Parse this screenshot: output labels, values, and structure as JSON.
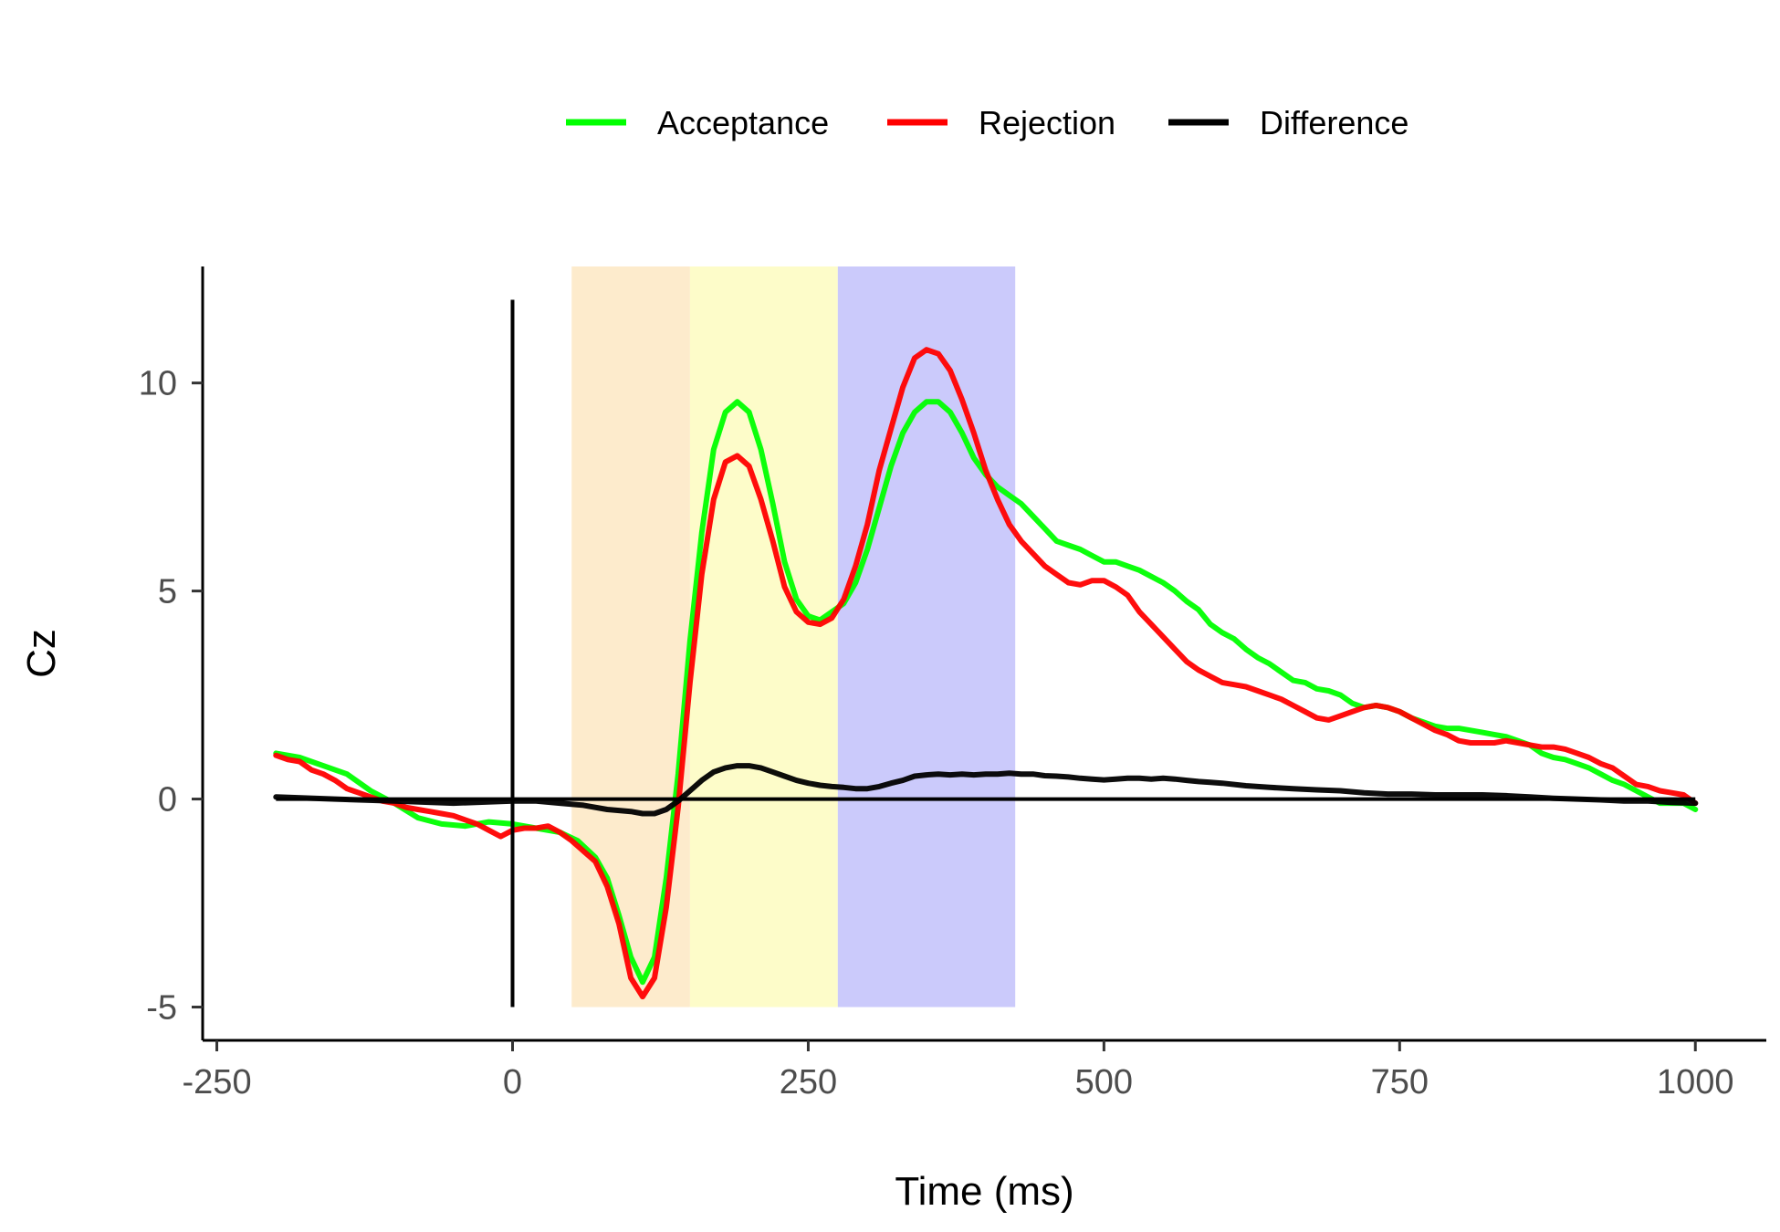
{
  "chart_data": {
    "type": "line",
    "title": "",
    "xlabel": "Time (ms)",
    "ylabel": "Cz",
    "xlim": [
      -262,
      1060
    ],
    "ylim": [
      -5.8,
      12.8
    ],
    "x_ticks": [
      -250,
      0,
      250,
      500,
      750,
      1000
    ],
    "x_tick_labels": [
      "-250",
      "0",
      "250",
      "500",
      "750",
      "1000"
    ],
    "y_ticks": [
      -5,
      0,
      5,
      10
    ],
    "y_tick_labels": [
      "-5",
      "0",
      "5",
      "10"
    ],
    "grid": false,
    "legend_position": "top",
    "reference_lines": [
      {
        "orientation": "horizontal",
        "value": 0,
        "color": "#000000"
      },
      {
        "orientation": "vertical",
        "value": 0,
        "from": -5,
        "to": 12,
        "color": "#000000"
      }
    ],
    "shaded_windows": [
      {
        "from": 50,
        "to": 150,
        "y_from": -5,
        "y_to": 12.8,
        "color": "#fdebcc"
      },
      {
        "from": 150,
        "to": 275,
        "y_from": -5,
        "y_to": 12.8,
        "color": "#fdfcc9"
      },
      {
        "from": 275,
        "to": 425,
        "y_from": -5,
        "y_to": 12.8,
        "color": "#cbcafb"
      }
    ],
    "series": [
      {
        "name": "Acceptance",
        "color": "#00ff00",
        "points": [
          [
            -200,
            1.1
          ],
          [
            -180,
            1.0
          ],
          [
            -160,
            0.8
          ],
          [
            -140,
            0.6
          ],
          [
            -120,
            0.2
          ],
          [
            -100,
            -0.1
          ],
          [
            -80,
            -0.45
          ],
          [
            -60,
            -0.6
          ],
          [
            -40,
            -0.65
          ],
          [
            -20,
            -0.55
          ],
          [
            0,
            -0.6
          ],
          [
            20,
            -0.7
          ],
          [
            40,
            -0.8
          ],
          [
            55,
            -1.0
          ],
          [
            70,
            -1.4
          ],
          [
            80,
            -1.9
          ],
          [
            90,
            -2.8
          ],
          [
            100,
            -3.8
          ],
          [
            110,
            -4.4
          ],
          [
            120,
            -3.8
          ],
          [
            130,
            -1.9
          ],
          [
            140,
            0.6
          ],
          [
            150,
            3.8
          ],
          [
            160,
            6.4
          ],
          [
            170,
            8.4
          ],
          [
            180,
            9.3
          ],
          [
            190,
            9.55
          ],
          [
            200,
            9.3
          ],
          [
            210,
            8.4
          ],
          [
            220,
            7.1
          ],
          [
            230,
            5.7
          ],
          [
            240,
            4.8
          ],
          [
            250,
            4.4
          ],
          [
            260,
            4.3
          ],
          [
            270,
            4.5
          ],
          [
            280,
            4.7
          ],
          [
            290,
            5.2
          ],
          [
            300,
            6.0
          ],
          [
            310,
            7.0
          ],
          [
            320,
            8.0
          ],
          [
            330,
            8.8
          ],
          [
            340,
            9.3
          ],
          [
            350,
            9.55
          ],
          [
            360,
            9.55
          ],
          [
            370,
            9.3
          ],
          [
            380,
            8.8
          ],
          [
            390,
            8.2
          ],
          [
            400,
            7.8
          ],
          [
            410,
            7.5
          ],
          [
            420,
            7.3
          ],
          [
            430,
            7.1
          ],
          [
            440,
            6.8
          ],
          [
            450,
            6.5
          ],
          [
            460,
            6.2
          ],
          [
            470,
            6.1
          ],
          [
            480,
            6.0
          ],
          [
            490,
            5.85
          ],
          [
            500,
            5.7
          ],
          [
            510,
            5.7
          ],
          [
            520,
            5.6
          ],
          [
            530,
            5.5
          ],
          [
            540,
            5.35
          ],
          [
            550,
            5.2
          ],
          [
            560,
            5.0
          ],
          [
            570,
            4.75
          ],
          [
            580,
            4.55
          ],
          [
            590,
            4.2
          ],
          [
            600,
            4.0
          ],
          [
            610,
            3.85
          ],
          [
            620,
            3.6
          ],
          [
            630,
            3.4
          ],
          [
            640,
            3.25
          ],
          [
            650,
            3.05
          ],
          [
            660,
            2.85
          ],
          [
            670,
            2.8
          ],
          [
            680,
            2.65
          ],
          [
            690,
            2.6
          ],
          [
            700,
            2.5
          ],
          [
            710,
            2.3
          ],
          [
            720,
            2.2
          ],
          [
            730,
            2.25
          ],
          [
            740,
            2.2
          ],
          [
            750,
            2.1
          ],
          [
            760,
            1.95
          ],
          [
            770,
            1.85
          ],
          [
            780,
            1.75
          ],
          [
            790,
            1.7
          ],
          [
            800,
            1.7
          ],
          [
            810,
            1.65
          ],
          [
            820,
            1.6
          ],
          [
            830,
            1.55
          ],
          [
            840,
            1.5
          ],
          [
            850,
            1.4
          ],
          [
            860,
            1.3
          ],
          [
            870,
            1.1
          ],
          [
            880,
            1.0
          ],
          [
            890,
            0.95
          ],
          [
            900,
            0.85
          ],
          [
            910,
            0.75
          ],
          [
            920,
            0.6
          ],
          [
            930,
            0.45
          ],
          [
            940,
            0.35
          ],
          [
            950,
            0.2
          ],
          [
            960,
            0.05
          ],
          [
            970,
            -0.1
          ],
          [
            980,
            -0.1
          ],
          [
            990,
            -0.1
          ],
          [
            1000,
            -0.25
          ]
        ]
      },
      {
        "name": "Rejection",
        "color": "#ff0000",
        "points": [
          [
            -200,
            1.05
          ],
          [
            -190,
            0.95
          ],
          [
            -180,
            0.9
          ],
          [
            -170,
            0.7
          ],
          [
            -160,
            0.6
          ],
          [
            -150,
            0.45
          ],
          [
            -140,
            0.25
          ],
          [
            -130,
            0.15
          ],
          [
            -120,
            0.05
          ],
          [
            -110,
            -0.05
          ],
          [
            -100,
            -0.1
          ],
          [
            -90,
            -0.2
          ],
          [
            -80,
            -0.25
          ],
          [
            -70,
            -0.3
          ],
          [
            -60,
            -0.35
          ],
          [
            -50,
            -0.4
          ],
          [
            -40,
            -0.5
          ],
          [
            -30,
            -0.6
          ],
          [
            -20,
            -0.75
          ],
          [
            -10,
            -0.9
          ],
          [
            0,
            -0.75
          ],
          [
            10,
            -0.7
          ],
          [
            20,
            -0.7
          ],
          [
            30,
            -0.65
          ],
          [
            40,
            -0.8
          ],
          [
            50,
            -1.0
          ],
          [
            60,
            -1.25
          ],
          [
            70,
            -1.5
          ],
          [
            80,
            -2.1
          ],
          [
            90,
            -3.0
          ],
          [
            100,
            -4.3
          ],
          [
            110,
            -4.75
          ],
          [
            120,
            -4.3
          ],
          [
            130,
            -2.6
          ],
          [
            140,
            -0.2
          ],
          [
            150,
            2.8
          ],
          [
            160,
            5.4
          ],
          [
            170,
            7.2
          ],
          [
            180,
            8.1
          ],
          [
            190,
            8.25
          ],
          [
            200,
            8.0
          ],
          [
            210,
            7.2
          ],
          [
            220,
            6.2
          ],
          [
            230,
            5.1
          ],
          [
            240,
            4.5
          ],
          [
            250,
            4.25
          ],
          [
            260,
            4.2
          ],
          [
            270,
            4.35
          ],
          [
            280,
            4.8
          ],
          [
            290,
            5.6
          ],
          [
            300,
            6.6
          ],
          [
            310,
            7.9
          ],
          [
            320,
            8.9
          ],
          [
            330,
            9.9
          ],
          [
            340,
            10.6
          ],
          [
            350,
            10.8
          ],
          [
            360,
            10.7
          ],
          [
            370,
            10.3
          ],
          [
            380,
            9.6
          ],
          [
            390,
            8.8
          ],
          [
            400,
            7.9
          ],
          [
            410,
            7.2
          ],
          [
            420,
            6.6
          ],
          [
            430,
            6.2
          ],
          [
            440,
            5.9
          ],
          [
            450,
            5.6
          ],
          [
            460,
            5.4
          ],
          [
            470,
            5.2
          ],
          [
            480,
            5.15
          ],
          [
            490,
            5.25
          ],
          [
            500,
            5.25
          ],
          [
            510,
            5.1
          ],
          [
            520,
            4.9
          ],
          [
            530,
            4.5
          ],
          [
            540,
            4.2
          ],
          [
            550,
            3.9
          ],
          [
            560,
            3.6
          ],
          [
            570,
            3.3
          ],
          [
            580,
            3.1
          ],
          [
            590,
            2.95
          ],
          [
            600,
            2.8
          ],
          [
            610,
            2.75
          ],
          [
            620,
            2.7
          ],
          [
            630,
            2.6
          ],
          [
            640,
            2.5
          ],
          [
            650,
            2.4
          ],
          [
            660,
            2.25
          ],
          [
            670,
            2.1
          ],
          [
            680,
            1.95
          ],
          [
            690,
            1.9
          ],
          [
            700,
            2.0
          ],
          [
            710,
            2.1
          ],
          [
            720,
            2.2
          ],
          [
            730,
            2.25
          ],
          [
            740,
            2.2
          ],
          [
            750,
            2.1
          ],
          [
            760,
            1.95
          ],
          [
            770,
            1.8
          ],
          [
            780,
            1.65
          ],
          [
            790,
            1.55
          ],
          [
            800,
            1.4
          ],
          [
            810,
            1.35
          ],
          [
            820,
            1.35
          ],
          [
            830,
            1.35
          ],
          [
            840,
            1.4
          ],
          [
            850,
            1.35
          ],
          [
            860,
            1.3
          ],
          [
            870,
            1.25
          ],
          [
            880,
            1.25
          ],
          [
            890,
            1.2
          ],
          [
            900,
            1.1
          ],
          [
            910,
            1.0
          ],
          [
            920,
            0.85
          ],
          [
            930,
            0.75
          ],
          [
            940,
            0.55
          ],
          [
            950,
            0.35
          ],
          [
            960,
            0.3
          ],
          [
            970,
            0.2
          ],
          [
            980,
            0.15
          ],
          [
            990,
            0.1
          ],
          [
            1000,
            -0.1
          ]
        ]
      },
      {
        "name": "Difference",
        "color": "#000000",
        "points": [
          [
            -200,
            0.05
          ],
          [
            -150,
            0.0
          ],
          [
            -100,
            -0.05
          ],
          [
            -50,
            -0.1
          ],
          [
            0,
            -0.05
          ],
          [
            20,
            -0.05
          ],
          [
            40,
            -0.1
          ],
          [
            60,
            -0.15
          ],
          [
            80,
            -0.25
          ],
          [
            100,
            -0.3
          ],
          [
            110,
            -0.35
          ],
          [
            120,
            -0.35
          ],
          [
            130,
            -0.25
          ],
          [
            140,
            -0.05
          ],
          [
            150,
            0.2
          ],
          [
            160,
            0.45
          ],
          [
            170,
            0.65
          ],
          [
            180,
            0.75
          ],
          [
            190,
            0.8
          ],
          [
            200,
            0.8
          ],
          [
            210,
            0.75
          ],
          [
            220,
            0.65
          ],
          [
            230,
            0.55
          ],
          [
            240,
            0.45
          ],
          [
            250,
            0.38
          ],
          [
            260,
            0.33
          ],
          [
            270,
            0.3
          ],
          [
            280,
            0.28
          ],
          [
            290,
            0.25
          ],
          [
            300,
            0.25
          ],
          [
            310,
            0.3
          ],
          [
            320,
            0.38
          ],
          [
            330,
            0.45
          ],
          [
            340,
            0.55
          ],
          [
            350,
            0.58
          ],
          [
            360,
            0.6
          ],
          [
            370,
            0.58
          ],
          [
            380,
            0.6
          ],
          [
            390,
            0.58
          ],
          [
            400,
            0.6
          ],
          [
            410,
            0.6
          ],
          [
            420,
            0.62
          ],
          [
            430,
            0.6
          ],
          [
            440,
            0.6
          ],
          [
            450,
            0.56
          ],
          [
            460,
            0.55
          ],
          [
            470,
            0.53
          ],
          [
            480,
            0.5
          ],
          [
            490,
            0.48
          ],
          [
            500,
            0.46
          ],
          [
            510,
            0.48
          ],
          [
            520,
            0.5
          ],
          [
            530,
            0.5
          ],
          [
            540,
            0.48
          ],
          [
            550,
            0.5
          ],
          [
            560,
            0.48
          ],
          [
            570,
            0.45
          ],
          [
            580,
            0.42
          ],
          [
            590,
            0.4
          ],
          [
            600,
            0.38
          ],
          [
            620,
            0.32
          ],
          [
            640,
            0.28
          ],
          [
            660,
            0.25
          ],
          [
            680,
            0.22
          ],
          [
            700,
            0.2
          ],
          [
            720,
            0.15
          ],
          [
            740,
            0.12
          ],
          [
            760,
            0.12
          ],
          [
            780,
            0.1
          ],
          [
            800,
            0.1
          ],
          [
            820,
            0.1
          ],
          [
            840,
            0.08
          ],
          [
            860,
            0.05
          ],
          [
            880,
            0.02
          ],
          [
            900,
            0.0
          ],
          [
            920,
            -0.02
          ],
          [
            940,
            -0.05
          ],
          [
            960,
            -0.05
          ],
          [
            980,
            -0.08
          ],
          [
            1000,
            -0.1
          ]
        ]
      }
    ]
  }
}
